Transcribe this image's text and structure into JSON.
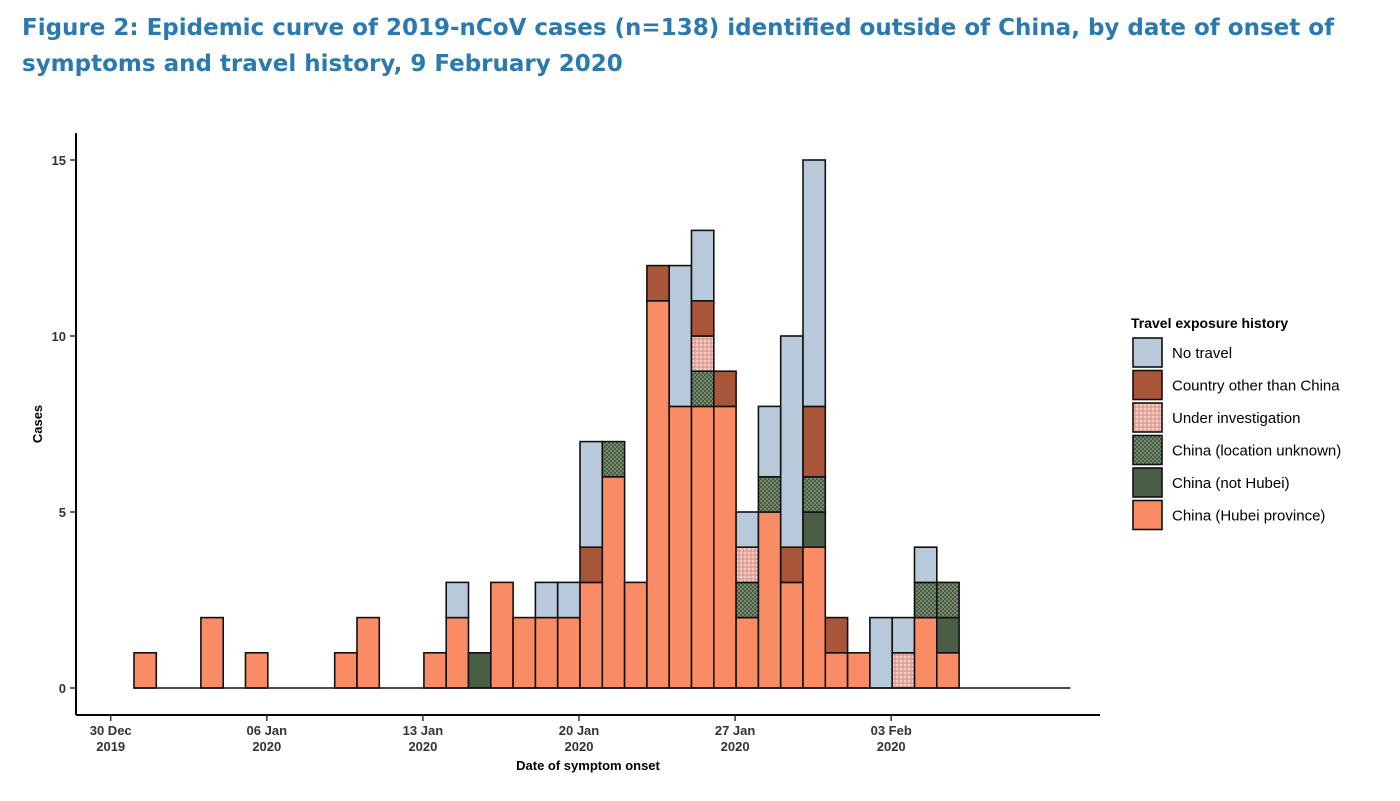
{
  "figure": {
    "title": "Figure 2: Epidemic curve of 2019-nCoV cases (n=138) identified outside of China, by date of onset of symptoms and travel history, 9 February 2020"
  },
  "chart_data": {
    "type": "bar",
    "stacked": true,
    "xlabel": "Date of symptom onset",
    "ylabel": "Cases",
    "ylim": [
      0,
      15
    ],
    "yticks": [
      0,
      5,
      10,
      15
    ],
    "x_start_date": "2019-12-30",
    "x_end_date": "2020-02-10",
    "xticks": [
      {
        "date": "2019-12-30",
        "line1": "30 Dec",
        "line2": "2019"
      },
      {
        "date": "2020-01-06",
        "line1": "06 Jan",
        "line2": "2020"
      },
      {
        "date": "2020-01-13",
        "line1": "13 Jan",
        "line2": "2020"
      },
      {
        "date": "2020-01-20",
        "line1": "20 Jan",
        "line2": "2020"
      },
      {
        "date": "2020-01-27",
        "line1": "27 Jan",
        "line2": "2020"
      },
      {
        "date": "2020-02-03",
        "line1": "03 Feb",
        "line2": "2020"
      }
    ],
    "grid": false,
    "legend_position": "right",
    "legend_title": "Travel exposure history",
    "categories": [
      "2019-12-31",
      "2020-01-01",
      "2020-01-02",
      "2020-01-03",
      "2020-01-04",
      "2020-01-05",
      "2020-01-06",
      "2020-01-07",
      "2020-01-08",
      "2020-01-09",
      "2020-01-10",
      "2020-01-11",
      "2020-01-12",
      "2020-01-13",
      "2020-01-14",
      "2020-01-15",
      "2020-01-16",
      "2020-01-17",
      "2020-01-18",
      "2020-01-19",
      "2020-01-20",
      "2020-01-21",
      "2020-01-22",
      "2020-01-23",
      "2020-01-24",
      "2020-01-25",
      "2020-01-26",
      "2020-01-27",
      "2020-01-28",
      "2020-01-29",
      "2020-01-30",
      "2020-01-31",
      "2020-02-01",
      "2020-02-02",
      "2020-02-03",
      "2020-02-04",
      "2020-02-05",
      "2020-02-06",
      "2020-02-07",
      "2020-02-08",
      "2020-02-09",
      "2020-02-10"
    ],
    "series": [
      {
        "name": "China (Hubei province)",
        "color": "#f98c64",
        "pattern": "none",
        "values": [
          1,
          0,
          0,
          2,
          0,
          1,
          0,
          0,
          0,
          1,
          2,
          0,
          0,
          1,
          2,
          0,
          3,
          2,
          2,
          2,
          3,
          6,
          3,
          11,
          8,
          8,
          8,
          2,
          5,
          3,
          4,
          1,
          1,
          0,
          0,
          2,
          1,
          0,
          0,
          0,
          0,
          0
        ]
      },
      {
        "name": "China (not Hubei)",
        "color": "#4a5e45",
        "pattern": "none",
        "values": [
          0,
          0,
          0,
          0,
          0,
          0,
          0,
          0,
          0,
          0,
          0,
          0,
          0,
          0,
          0,
          1,
          0,
          0,
          0,
          0,
          0,
          0,
          0,
          0,
          0,
          0,
          0,
          0,
          0,
          0,
          1,
          0,
          0,
          0,
          0,
          0,
          1,
          0,
          0,
          0,
          0,
          0
        ]
      },
      {
        "name": "China (location unknown)",
        "color": "#4a5e45",
        "pattern": "dots",
        "values": [
          0,
          0,
          0,
          0,
          0,
          0,
          0,
          0,
          0,
          0,
          0,
          0,
          0,
          0,
          0,
          0,
          0,
          0,
          0,
          0,
          0,
          1,
          0,
          0,
          0,
          1,
          0,
          1,
          1,
          0,
          1,
          0,
          0,
          0,
          0,
          1,
          1,
          0,
          0,
          0,
          0,
          0
        ]
      },
      {
        "name": "Under investigation",
        "color": "#e8aea4",
        "pattern": "dots",
        "values": [
          0,
          0,
          0,
          0,
          0,
          0,
          0,
          0,
          0,
          0,
          0,
          0,
          0,
          0,
          0,
          0,
          0,
          0,
          0,
          0,
          0,
          0,
          0,
          0,
          0,
          1,
          0,
          1,
          0,
          0,
          0,
          0,
          0,
          0,
          1,
          0,
          0,
          0,
          0,
          0,
          0,
          0
        ]
      },
      {
        "name": "Country other than China",
        "color": "#a9553a",
        "pattern": "none",
        "values": [
          0,
          0,
          0,
          0,
          0,
          0,
          0,
          0,
          0,
          0,
          0,
          0,
          0,
          0,
          0,
          0,
          0,
          0,
          0,
          0,
          1,
          0,
          0,
          1,
          0,
          1,
          1,
          0,
          0,
          1,
          2,
          1,
          0,
          0,
          0,
          0,
          0,
          0,
          0,
          0,
          0,
          0
        ]
      },
      {
        "name": "No travel",
        "color": "#b9c9dc",
        "pattern": "none",
        "values": [
          0,
          0,
          0,
          0,
          0,
          0,
          0,
          0,
          0,
          0,
          0,
          0,
          0,
          0,
          1,
          0,
          0,
          0,
          1,
          1,
          3,
          0,
          0,
          0,
          4,
          2,
          0,
          1,
          2,
          6,
          7,
          0,
          0,
          2,
          1,
          1,
          0,
          0,
          0,
          0,
          0,
          0
        ]
      }
    ],
    "legend_order": [
      "No travel",
      "Country other than China",
      "Under investigation",
      "China (location unknown)",
      "China (not Hubei)",
      "China (Hubei province)"
    ]
  }
}
